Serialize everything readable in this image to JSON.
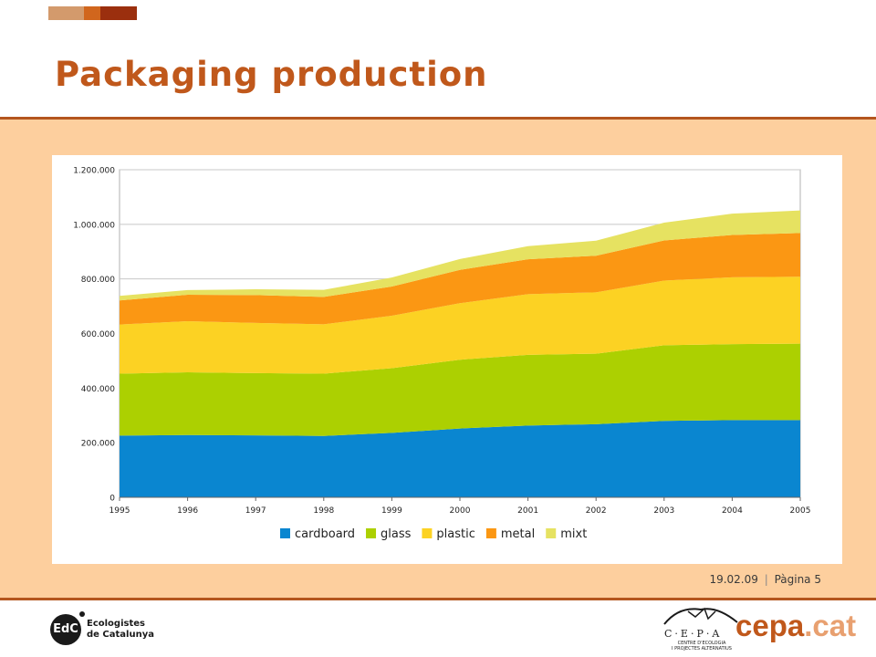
{
  "slide": {
    "title": "Packaging production",
    "footer_date": "19.02.09",
    "footer_separator": "|",
    "footer_page": "Pàgina 5",
    "accent_colors": [
      "#d39a6c",
      "#d1661d",
      "#9b2f0e"
    ],
    "band_color": "#fdcf9e",
    "rule_color": "#b4561e"
  },
  "logos": {
    "edc_mark": "EdC",
    "edc_name_line1": "Ecologistes",
    "edc_name_line2": "de Catalunya",
    "cepa_letters": "C·E·P·A",
    "cepa_sub_line1": "CENTRE D'ECOLOGIA",
    "cepa_sub_line2": "I PROJECTES ALTERNATIUS",
    "cepa_icon": "butterfly-icon",
    "cepacat_main": "cepa",
    "cepacat_tld": ".cat"
  },
  "chart_data": {
    "type": "area",
    "stacked": true,
    "x": [
      "1995",
      "1996",
      "1997",
      "1998",
      "1999",
      "2000",
      "2001",
      "2002",
      "2003",
      "2004",
      "2005"
    ],
    "y_ticks": [
      "0",
      "200.000",
      "400.000",
      "600.000",
      "800.000",
      "1.000.000",
      "1.200.000"
    ],
    "ylim": [
      0,
      1200000
    ],
    "grid": "horizontal",
    "legend_position": "bottom",
    "series": [
      {
        "name": "cardboard",
        "color": "#0a86d0",
        "values": [
          226000,
          228000,
          227000,
          225000,
          236000,
          252000,
          263000,
          268000,
          280000,
          283000,
          283000
        ]
      },
      {
        "name": "glass",
        "color": "#acd001",
        "values": [
          227000,
          230000,
          228000,
          228000,
          237000,
          252000,
          259000,
          258000,
          277000,
          278000,
          280000
        ]
      },
      {
        "name": "plastic",
        "color": "#fcd223",
        "values": [
          180000,
          187000,
          184000,
          181000,
          192000,
          207000,
          222000,
          225000,
          237000,
          245000,
          245000
        ]
      },
      {
        "name": "metal",
        "color": "#fb9713",
        "values": [
          88000,
          97000,
          102000,
          100000,
          107000,
          122000,
          128000,
          134000,
          147000,
          155000,
          160000
        ]
      },
      {
        "name": "mixt",
        "color": "#e6e261",
        "values": [
          17000,
          17000,
          21000,
          26000,
          33000,
          40000,
          48000,
          55000,
          65000,
          78000,
          83000
        ]
      }
    ]
  }
}
